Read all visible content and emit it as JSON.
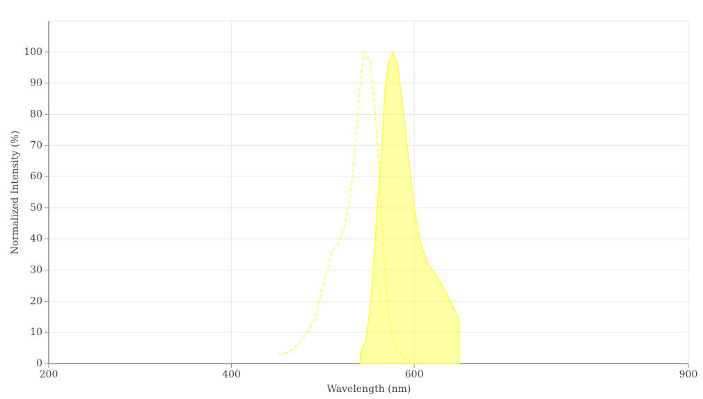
{
  "chart_data": {
    "type": "spectrum",
    "x_label": "Wavelength (nm)",
    "y_label": "Normalized Intensity (%)",
    "xlim": [
      200,
      900
    ],
    "xticks": [
      200,
      400,
      600,
      900
    ],
    "ylim": [
      0,
      110
    ],
    "yticks": [
      0,
      10,
      20,
      30,
      40,
      50,
      60,
      70,
      80,
      90,
      100
    ],
    "grid": true,
    "series": [
      {
        "color": "#ffff33",
        "dashed": true,
        "filled": false,
        "x": [
          451,
          462,
          474,
          482,
          491,
          496,
          502,
          510,
          517,
          524,
          530,
          535,
          539,
          543,
          546,
          552,
          557,
          561,
          565,
          569,
          574,
          580,
          589,
          597
        ],
        "values": [
          2.9,
          3.6,
          6.3,
          9.6,
          14,
          19.6,
          27.5,
          36,
          38.6,
          44,
          54,
          67.6,
          83,
          95.5,
          100,
          96.7,
          81,
          65.4,
          43,
          25,
          11.8,
          5.1,
          1.8,
          0.4
        ]
      },
      {
        "color": "#ffff33",
        "dashed": false,
        "filled": true,
        "x": [
          541,
          541,
          547,
          552,
          556,
          560,
          565,
          568,
          572,
          577,
          582,
          588,
          594,
          600,
          607,
          615,
          626,
          638,
          649,
          649
        ],
        "values": [
          0,
          3,
          7.4,
          18.5,
          34,
          52,
          72,
          88,
          96.7,
          100,
          95.5,
          81,
          65.4,
          49.8,
          38.6,
          32,
          27.5,
          20.8,
          14,
          0
        ]
      }
    ]
  }
}
